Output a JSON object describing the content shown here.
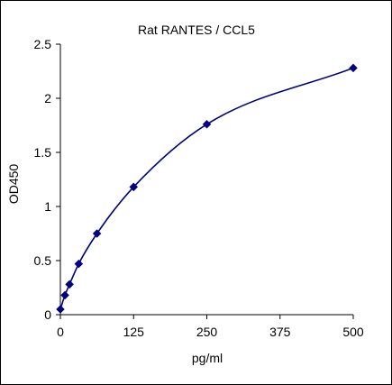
{
  "chart_data": {
    "type": "scatter",
    "title": "Rat  RANTES / CCL5",
    "xlabel": "pg/ml",
    "ylabel": "OD450",
    "xlim": [
      0,
      500
    ],
    "ylim": [
      0,
      2.5
    ],
    "xticks": [
      0,
      125,
      250,
      375,
      500
    ],
    "xtick_labels": [
      "0",
      "125",
      "250",
      "375",
      "500"
    ],
    "yticks": [
      0,
      0.5,
      1,
      1.5,
      2,
      2.5
    ],
    "ytick_labels": [
      "0",
      "0.5",
      "1",
      "1.5",
      "2",
      "2.5"
    ],
    "grid": false,
    "legend": "none",
    "series": [
      {
        "x": [
          0,
          7.8,
          15.6,
          31.25,
          62.5,
          125,
          250,
          500
        ],
        "y": [
          0.05,
          0.18,
          0.28,
          0.47,
          0.75,
          1.18,
          1.76,
          2.28
        ],
        "color": "#000080",
        "marker": "diamond",
        "line": "smooth"
      }
    ]
  }
}
